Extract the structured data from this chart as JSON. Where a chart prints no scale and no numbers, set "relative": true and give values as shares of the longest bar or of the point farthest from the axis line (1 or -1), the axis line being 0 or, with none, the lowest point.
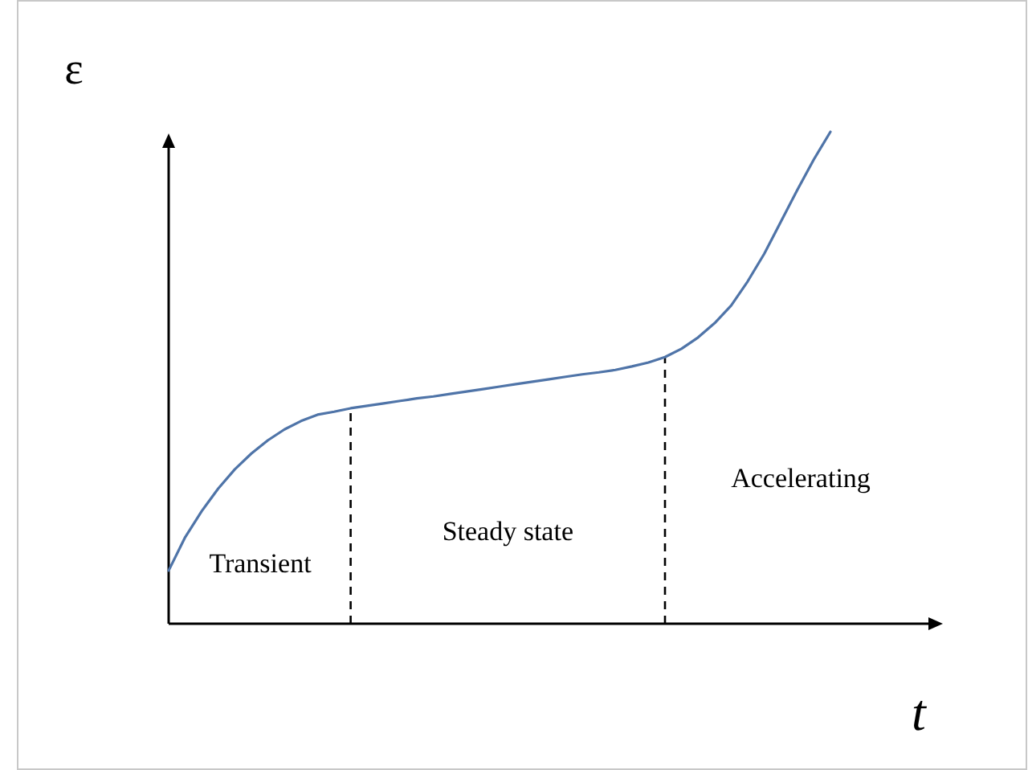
{
  "chart_data": {
    "type": "line",
    "xlabel": "t",
    "ylabel": "ε",
    "relative": true,
    "line_style": "solid",
    "categories": [
      null,
      null,
      null,
      null,
      null,
      null,
      null,
      null,
      null,
      null,
      null,
      null,
      null,
      null,
      null,
      null,
      null,
      null,
      null,
      null,
      null,
      null,
      null,
      null,
      null,
      null,
      null,
      null,
      null,
      null,
      null,
      null,
      null,
      null,
      null,
      null,
      null,
      null,
      null,
      null,
      null
    ],
    "series": [
      {
        "color": "#4f74a8",
        "values": [
          0.108,
          0.176,
          0.229,
          0.275,
          0.314,
          0.346,
          0.373,
          0.395,
          0.412,
          0.425,
          0.431,
          0.438,
          0.443,
          0.448,
          0.453,
          0.458,
          0.462,
          0.467,
          0.472,
          0.477,
          0.482,
          0.487,
          0.492,
          0.497,
          0.502,
          0.507,
          0.511,
          0.516,
          0.523,
          0.531,
          0.542,
          0.559,
          0.582,
          0.611,
          0.647,
          0.696,
          0.752,
          0.817,
          0.882,
          0.944,
          1
        ]
      }
    ],
    "annotations": [
      "Transient",
      "Steady state",
      "Accelerating"
    ]
  }
}
